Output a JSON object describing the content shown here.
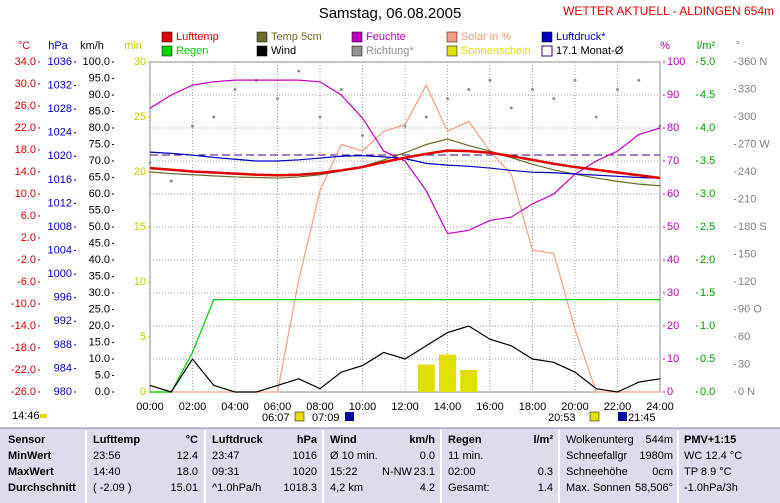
{
  "chart_data": {
    "type": "line",
    "title": "Samstag, 06.08.2005",
    "subtitle": "WETTER AKTUELL - ALDINGEN 654m",
    "x": [
      0,
      1,
      2,
      3,
      4,
      5,
      6,
      7,
      8,
      9,
      10,
      11,
      12,
      13,
      14,
      15,
      16,
      17,
      18,
      19,
      20,
      21,
      22,
      23,
      24
    ],
    "xlim": [
      0,
      24
    ],
    "xticks": [
      {
        "value": 0,
        "label": "00:00"
      },
      {
        "value": 2,
        "label": "02:00"
      },
      {
        "value": 4,
        "label": "04:00"
      },
      {
        "value": 6,
        "label": "06:00"
      },
      {
        "value": 8,
        "label": "08:00"
      },
      {
        "value": 10,
        "label": "10:00"
      },
      {
        "value": 12,
        "label": "12:00"
      },
      {
        "value": 14,
        "label": "14:00"
      },
      {
        "value": 16,
        "label": "16:00"
      },
      {
        "value": 18,
        "label": "18:00"
      },
      {
        "value": 20,
        "label": "20:00"
      },
      {
        "value": 22,
        "label": "22:00"
      },
      {
        "value": 24,
        "label": "24:00"
      }
    ],
    "grid": true,
    "axes": [
      {
        "id": "y1",
        "unit": "°C",
        "color": "#e00000",
        "ylim": [
          -26,
          34
        ],
        "yticks": [
          {
            "value": 34,
            "label": "34.0"
          },
          {
            "value": 30,
            "label": "30.0"
          },
          {
            "value": 26,
            "label": "26.0"
          },
          {
            "value": 22,
            "label": "22.0"
          },
          {
            "value": 18,
            "label": "18.0"
          },
          {
            "value": 14,
            "label": "14.0"
          },
          {
            "value": 10,
            "label": "10.0"
          },
          {
            "value": 6,
            "label": "6.0"
          },
          {
            "value": 2,
            "label": "2.0"
          },
          {
            "value": -2,
            "label": "-2.0"
          },
          {
            "value": -6,
            "label": "-6.0"
          },
          {
            "value": -10,
            "label": "-10.0"
          },
          {
            "value": -14,
            "label": "-14.0"
          },
          {
            "value": -18,
            "label": "-18.0"
          },
          {
            "value": -22,
            "label": "-22.0"
          },
          {
            "value": -26,
            "label": "-26.0"
          }
        ]
      },
      {
        "id": "y2",
        "unit": "hPa",
        "color": "#0000c0",
        "ylim": [
          980,
          1036
        ],
        "yticks": [
          1036,
          1032,
          1028,
          1024,
          1020,
          1016,
          1012,
          1008,
          1004,
          1000,
          996,
          992,
          988,
          984,
          980
        ]
      },
      {
        "id": "y3",
        "unit": "km/h",
        "color": "#000000",
        "ylim": [
          0,
          100
        ],
        "yticks": [
          {
            "value": 100,
            "label": "100.0"
          },
          {
            "value": 95,
            "label": "95.0"
          },
          {
            "value": 90,
            "label": "90.0"
          },
          {
            "value": 85,
            "label": "85.0"
          },
          {
            "value": 80,
            "label": "80.0"
          },
          {
            "value": 75,
            "label": "75.0"
          },
          {
            "value": 70,
            "label": "70.0"
          },
          {
            "value": 65,
            "label": "65.0"
          },
          {
            "value": 60,
            "label": "60.0"
          },
          {
            "value": 55,
            "label": "55.0"
          },
          {
            "value": 50,
            "label": "50.0"
          },
          {
            "value": 45,
            "label": "45.0"
          },
          {
            "value": 40,
            "label": "40.0"
          },
          {
            "value": 35,
            "label": "35.0"
          },
          {
            "value": 30,
            "label": "30.0"
          },
          {
            "value": 25,
            "label": "25.0"
          },
          {
            "value": 20,
            "label": "20.0"
          },
          {
            "value": 15,
            "label": "15.0"
          },
          {
            "value": 10,
            "label": "10.0"
          },
          {
            "value": 5,
            "label": "5.0"
          },
          {
            "value": 0,
            "label": "0.0"
          }
        ]
      },
      {
        "id": "y4",
        "unit": "min",
        "color": "#c8c800",
        "ylim": [
          0,
          30
        ],
        "yticks": [
          30,
          25,
          20,
          15,
          10,
          5,
          0
        ]
      },
      {
        "id": "y5",
        "unit": "%",
        "color": "#c000c0",
        "ylim": [
          0,
          100
        ],
        "yticks": [
          100,
          90,
          80,
          70,
          60,
          50,
          40,
          30,
          20,
          10,
          0
        ]
      },
      {
        "id": "y6",
        "unit": "l/m²",
        "color": "#00a000",
        "ylim": [
          0,
          5
        ],
        "yticks": [
          {
            "value": 5,
            "label": "5.0"
          },
          {
            "value": 4.5,
            "label": "4.5"
          },
          {
            "value": 4,
            "label": "4.0"
          },
          {
            "value": 3.5,
            "label": "3.5"
          },
          {
            "value": 3,
            "label": "3.0"
          },
          {
            "value": 2.5,
            "label": "2.5"
          },
          {
            "value": 2,
            "label": "2.0"
          },
          {
            "value": 1.5,
            "label": "1.5"
          },
          {
            "value": 1,
            "label": "1.0"
          },
          {
            "value": 0.5,
            "label": "0.5"
          },
          {
            "value": 0,
            "label": "0.0"
          }
        ]
      },
      {
        "id": "y7",
        "unit": "°",
        "color": "#808080",
        "ylim": [
          0,
          360
        ],
        "yticks": [
          {
            "value": 360,
            "label": "360 N"
          },
          330,
          300,
          {
            "value": 270,
            "label": "270 W"
          },
          240,
          210,
          {
            "value": 180,
            "label": "180 S"
          },
          150,
          120,
          {
            "value": 90,
            "label": "90 O"
          },
          60,
          30,
          {
            "value": 0,
            "label": "0 N"
          }
        ]
      }
    ],
    "series": [
      {
        "name": "Lufttemp",
        "color": "#e00000",
        "axis": "y1",
        "style": "line",
        "values": [
          14.7,
          14.4,
          14.1,
          13.9,
          13.7,
          13.5,
          13.4,
          13.5,
          13.8,
          14.3,
          14.9,
          15.8,
          16.6,
          17.3,
          17.9,
          17.8,
          17.5,
          16.9,
          16.2,
          15.5,
          14.9,
          14.4,
          13.9,
          13.4,
          12.9
        ]
      },
      {
        "name": "Temp 5cm",
        "color": "#6b6b2a",
        "axis": "y1",
        "style": "line",
        "values": [
          14.0,
          13.7,
          13.5,
          13.3,
          13.1,
          13.0,
          12.9,
          13.1,
          13.5,
          14.2,
          15.0,
          16.2,
          17.5,
          19.0,
          20.0,
          18.8,
          17.8,
          16.6,
          15.4,
          14.4,
          13.6,
          12.9,
          12.3,
          11.8,
          11.5
        ]
      },
      {
        "name": "Feuchte",
        "color": "#c000c0",
        "axis": "y5",
        "style": "line",
        "values": [
          86,
          90,
          93,
          94,
          94.5,
          94.5,
          94.5,
          94.5,
          94,
          90,
          83,
          73,
          70,
          61,
          48,
          49,
          52,
          53,
          57,
          60,
          66,
          70,
          73,
          78,
          80
        ]
      },
      {
        "name": "Solar in %",
        "color": "#f4a080",
        "axis": "y5",
        "style": "line",
        "values": [
          0,
          0,
          0,
          0,
          0,
          0,
          0,
          34,
          61,
          75,
          73,
          79,
          81,
          93,
          79,
          82,
          73,
          66,
          43,
          42,
          19,
          0,
          0,
          0,
          0
        ]
      },
      {
        "name": "Luftdruck*",
        "color": "#0000c0",
        "axis": "y2",
        "style": "line",
        "values": [
          1020.7,
          1020.5,
          1020.2,
          1019.8,
          1019.5,
          1019.2,
          1019.2,
          1019.4,
          1019.7,
          1020.0,
          1020.1,
          1019.9,
          1019.6,
          1018.8,
          1018.5,
          1018.3,
          1018.0,
          1017.6,
          1017.3,
          1017.2,
          1017.0,
          1016.8,
          1016.6,
          1016.4,
          1016.3
        ]
      },
      {
        "name": "Regen",
        "color": "#00d000",
        "axis": "y6",
        "style": "line",
        "values": [
          0,
          0,
          0.6,
          1.4,
          1.4,
          1.4,
          1.4,
          1.4,
          1.4,
          1.4,
          1.4,
          1.4,
          1.4,
          1.4,
          1.4,
          1.4,
          1.4,
          1.4,
          1.4,
          1.4,
          1.4,
          1.4,
          1.4,
          1.4,
          1.4
        ]
      },
      {
        "name": "Wind",
        "color": "#000000",
        "axis": "y3",
        "style": "line",
        "values": [
          2,
          0,
          10,
          2,
          0,
          0,
          2,
          4,
          1,
          6,
          8,
          12,
          10,
          14,
          18,
          20,
          16,
          14,
          10,
          9,
          6,
          1,
          0,
          3,
          4
        ]
      },
      {
        "name": "Richtung*",
        "color": "#909090",
        "axis": "y7",
        "style": "dots",
        "values": [
          250,
          230,
          290,
          300,
          330,
          340,
          320,
          350,
          300,
          330,
          280,
          250,
          290,
          300,
          320,
          330,
          340,
          310,
          330,
          320,
          340,
          300,
          330,
          340,
          290
        ]
      },
      {
        "name": "Sonnenschein",
        "color": "#e0e000",
        "axis": "y4",
        "style": "bars",
        "values": [
          0,
          0,
          0,
          0,
          0,
          0,
          0,
          0,
          0,
          0,
          0,
          0,
          0,
          2.5,
          3.4,
          2.0,
          0,
          0,
          0,
          0,
          0,
          0,
          0,
          0,
          0
        ]
      }
    ],
    "reference": {
      "name": "17.1 Monat-Ø",
      "value": 17.1,
      "color": "#400080",
      "axis": "y1"
    },
    "annotations": [
      "14:46",
      "06:07",
      "07:09",
      "20:53",
      "21:45"
    ]
  },
  "table": {
    "row_labels": [
      "Sensor",
      "MinWert",
      "MaxWert",
      "Durchschnitt"
    ],
    "groups": [
      {
        "title": "Lufttemp",
        "unit": "°C",
        "rows": [
          [
            "23:56",
            "12.4"
          ],
          [
            "14:40",
            "18.0"
          ],
          [
            "( -2.09 )",
            "15.01"
          ]
        ]
      },
      {
        "title": "Luftdruck",
        "unit": "hPa",
        "rows": [
          [
            "23:47",
            "1016"
          ],
          [
            "09:31",
            "1020"
          ],
          [
            "^1.0hPa/h",
            "1018.3"
          ]
        ]
      },
      {
        "title": "Wind",
        "unit": "km/h",
        "rows": [
          [
            "Ø 10 min.",
            "0.0"
          ],
          [
            "15:22",
            "N-NW",
            "23.1"
          ],
          [
            "4,2 km",
            "4.2"
          ]
        ]
      },
      {
        "title": "Regen",
        "unit": "l/m²",
        "rows": [
          [
            "11 min."
          ],
          [
            "02:00",
            "0.3"
          ],
          [
            "Gesamt:",
            "1.4"
          ]
        ]
      }
    ],
    "extra": [
      [
        "Wolkenunterg",
        "544m"
      ],
      [
        "Schneefallgr",
        "1980m"
      ],
      [
        "Schneehöhe",
        "0cm"
      ],
      [
        "Max. Sonnen",
        "58,506°"
      ]
    ],
    "pmv": [
      "PMV+1:15",
      "WC 12.4 °C",
      "TP 8.9 °C",
      "-1.0hPa/3h"
    ]
  }
}
